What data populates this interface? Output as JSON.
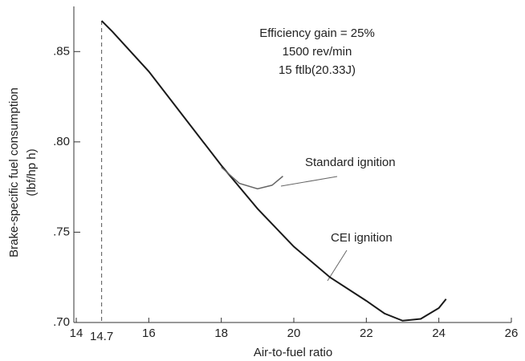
{
  "chart_data": {
    "type": "line",
    "x_label": "Air-to-fuel ratio",
    "y_label": [
      "Brake-specific fuel consumption",
      "(lbf/hp h)"
    ],
    "annotations": [
      "Efficiency gain = 25%",
      "1500 rev/min",
      "15 ftlb(20.33J)"
    ],
    "reference_line": {
      "value": 14.7,
      "label": "14.7"
    },
    "xlim": [
      14,
      26
    ],
    "xticks": [
      14,
      16,
      18,
      20,
      22,
      24,
      26
    ],
    "ylim": [
      0.7,
      0.875
    ],
    "yticks": [
      {
        "value": 0.7,
        "label": ".70"
      },
      {
        "value": 0.75,
        "label": ".75"
      },
      {
        "value": 0.8,
        "label": ".80"
      },
      {
        "value": 0.85,
        "label": ".85"
      }
    ],
    "series": [
      {
        "name": "CEI ignition",
        "color": "#1a1a1a",
        "x": [
          14.7,
          15,
          16,
          17,
          18,
          19,
          20,
          21,
          22,
          22.5,
          23,
          23.5,
          24,
          24.2
        ],
        "values": [
          0.867,
          0.861,
          0.839,
          0.813,
          0.787,
          0.763,
          0.742,
          0.725,
          0.712,
          0.705,
          0.701,
          0.702,
          0.708,
          0.713
        ]
      },
      {
        "name": "Standard ignition",
        "color": "#666666",
        "x": [
          18,
          18.5,
          19,
          19.4,
          19.7
        ],
        "values": [
          0.786,
          0.777,
          0.774,
          0.776,
          0.781
        ]
      }
    ]
  }
}
